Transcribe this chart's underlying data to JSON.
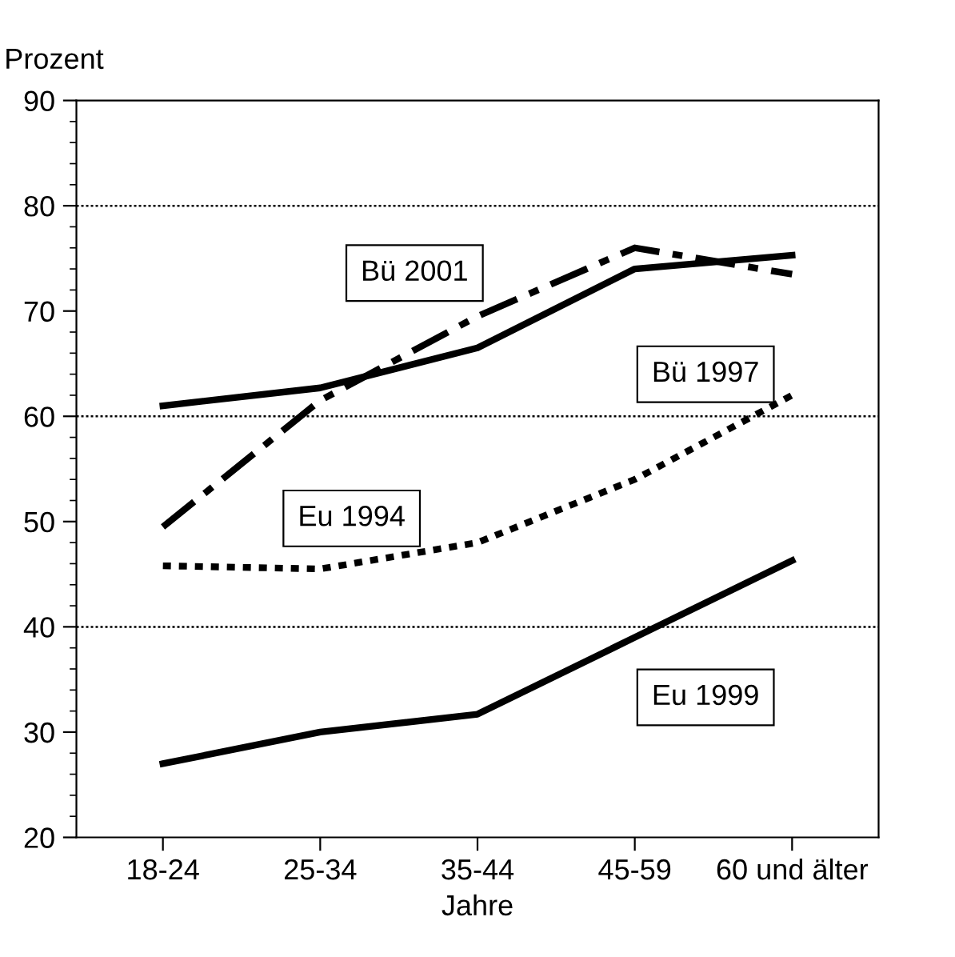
{
  "chart_data": {
    "type": "line",
    "ylabel": "Prozent",
    "xlabel": "Jahre",
    "categories": [
      "18-24",
      "25-34",
      "35-44",
      "45-59",
      "60 und älter"
    ],
    "ylim": [
      20,
      90
    ],
    "yticks": [
      20,
      30,
      40,
      50,
      60,
      70,
      80,
      90
    ],
    "grid": false,
    "legend": false,
    "marker": "none",
    "series": [
      {
        "name": "Bü 1997",
        "color": "#000000",
        "line_style": "solid",
        "values": [
          61,
          62.7,
          66.5,
          74,
          75.3
        ]
      },
      {
        "name": "Bü 2001",
        "color": "#000000",
        "line_style": "dashdot",
        "values": [
          49.5,
          61.5,
          69.5,
          76,
          73.5
        ]
      },
      {
        "name": "Eu 1994",
        "color": "#000000",
        "line_style": "dotted",
        "values": [
          45.8,
          45.5,
          48,
          54,
          62
        ]
      },
      {
        "name": "Eu 1999",
        "color": "#000000",
        "line_style": "solid",
        "values": [
          27,
          30,
          31.7,
          39,
          46.3
        ]
      }
    ],
    "ref_lines": [
      {
        "axis": "y",
        "value": 40,
        "color": "#000000",
        "line_style": "dotted"
      },
      {
        "axis": "y",
        "value": 60,
        "color": "#000000",
        "line_style": "dotted"
      },
      {
        "axis": "y",
        "value": 80,
        "color": "#000000",
        "line_style": "dotted"
      }
    ]
  }
}
